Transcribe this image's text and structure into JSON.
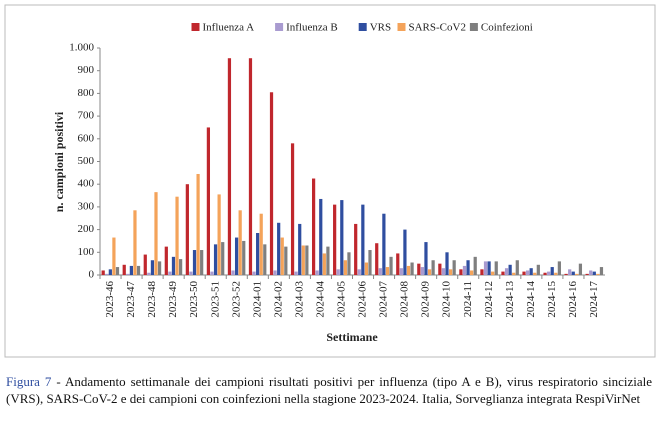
{
  "chart_data": {
    "type": "bar",
    "y_label": "n. campioni positivi",
    "x_label": "Settimane",
    "categories": [
      "2023-46",
      "2023-47",
      "2023-48",
      "2023-49",
      "2023-50",
      "2023-51",
      "2023-52",
      "2024-01",
      "2024-02",
      "2024-03",
      "2024-04",
      "2024-05",
      "2024-06",
      "2024-07",
      "2024-08",
      "2024-09",
      "2024-10",
      "2024-11",
      "2024-12",
      "2024-13",
      "2024-14",
      "2024-15",
      "2024-16",
      "2024-17"
    ],
    "series": [
      {
        "name": "Influenza A",
        "color": "#c0272d",
        "values": [
          20,
          45,
          90,
          125,
          400,
          650,
          955,
          955,
          805,
          580,
          425,
          310,
          225,
          140,
          95,
          50,
          50,
          25,
          25,
          15,
          15,
          10,
          5,
          5
        ]
      },
      {
        "name": "Influenza B",
        "color": "#a99bd0",
        "values": [
          5,
          5,
          10,
          15,
          15,
          15,
          20,
          15,
          20,
          15,
          20,
          25,
          25,
          30,
          30,
          35,
          30,
          40,
          60,
          30,
          20,
          15,
          25,
          20
        ]
      },
      {
        "name": "VRS",
        "color": "#2f4ea0",
        "values": [
          25,
          40,
          65,
          80,
          110,
          135,
          165,
          185,
          230,
          225,
          335,
          330,
          310,
          270,
          200,
          145,
          100,
          65,
          60,
          45,
          30,
          35,
          15,
          15
        ]
      },
      {
        "name": "SARS-CoV2",
        "color": "#f4a35a",
        "values": [
          165,
          285,
          365,
          345,
          445,
          355,
          285,
          270,
          165,
          130,
          95,
          65,
          55,
          35,
          40,
          25,
          25,
          20,
          15,
          10,
          10,
          10,
          5,
          5
        ]
      },
      {
        "name": "Coinfezioni",
        "color": "#7f7f7f",
        "values": [
          35,
          40,
          60,
          70,
          110,
          145,
          150,
          135,
          125,
          130,
          125,
          100,
          110,
          80,
          55,
          65,
          65,
          80,
          60,
          65,
          45,
          60,
          50,
          35
        ]
      }
    ],
    "ylim": [
      0,
      1000
    ],
    "yticks": [
      0,
      100,
      200,
      300,
      400,
      500,
      600,
      700,
      800,
      900,
      {
        "value": 1000,
        "label": "1.000"
      }
    ],
    "grid": false,
    "legend": "top"
  },
  "caption": {
    "label": "Figura 7",
    "text": "- Andamento settimanale dei campioni risultati positivi per influenza (tipo A e B), virus respiratorio sinciziale (VRS), SARS-CoV-2 e dei campioni con coinfezioni nella stagione 2023-2024. Italia, Sorveglianza integrata RespiVirNet"
  }
}
